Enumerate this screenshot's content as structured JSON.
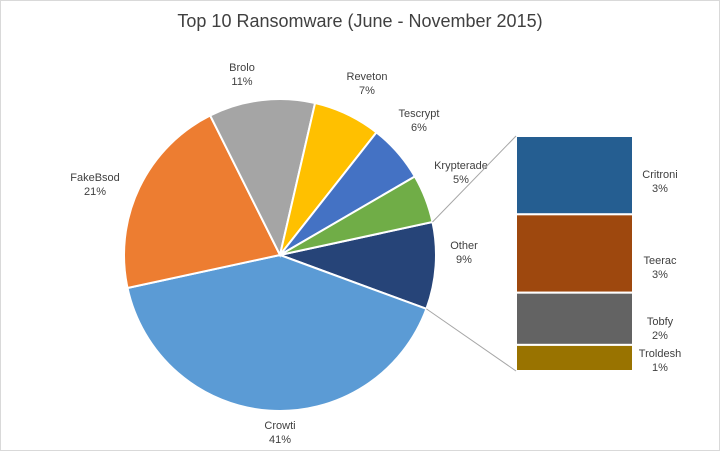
{
  "chart_data": {
    "type": "pie",
    "title": "Top 10 Ransomware (June - November 2015)",
    "slices": [
      {
        "label": "Crowti",
        "value": 41,
        "display": "41%",
        "color": "#5B9BD5"
      },
      {
        "label": "FakeBsod",
        "value": 21,
        "display": "21%",
        "color": "#ED7D31"
      },
      {
        "label": "Brolo",
        "value": 11,
        "display": "11%",
        "color": "#A5A5A5"
      },
      {
        "label": "Reveton",
        "value": 7,
        "display": "7%",
        "color": "#FFC000"
      },
      {
        "label": "Tescrypt",
        "value": 6,
        "display": "6%",
        "color": "#4472C4"
      },
      {
        "label": "Krypterade",
        "value": 5,
        "display": "5%",
        "color": "#70AD47"
      },
      {
        "label": "Other",
        "value": 9,
        "display": "9%",
        "color": "#264478"
      }
    ],
    "other_breakdown": {
      "type": "bar-of-pie",
      "parent": "Other",
      "segments": [
        {
          "label": "Critroni",
          "value": 3,
          "display": "3%",
          "color": "#255E91"
        },
        {
          "label": "Teerac",
          "value": 3,
          "display": "3%",
          "color": "#9E480E"
        },
        {
          "label": "Tobfy",
          "value": 2,
          "display": "2%",
          "color": "#636363"
        },
        {
          "label": "Troldesh",
          "value": 1,
          "display": "1%",
          "color": "#997300"
        }
      ]
    }
  }
}
